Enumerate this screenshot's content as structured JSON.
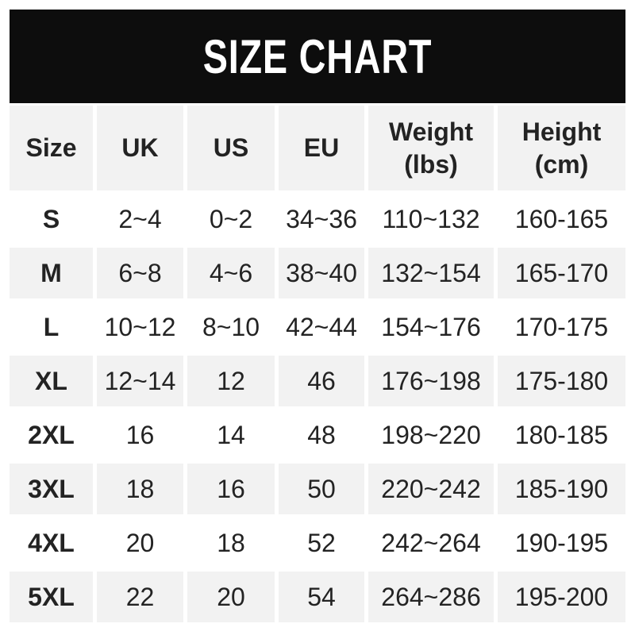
{
  "page": {
    "background": "#ffffff"
  },
  "banner": {
    "title": "SIZE CHART",
    "bg_color": "#0d0d0d",
    "text_color": "#ffffff"
  },
  "chart_data": {
    "type": "table",
    "title": "SIZE CHART",
    "columns": [
      "Size",
      "UK",
      "US",
      "EU",
      "Weight\n(lbs)",
      "Height\n(cm)"
    ],
    "rows": [
      [
        "S",
        "2~4",
        "0~2",
        "34~36",
        "110~132",
        "160-165"
      ],
      [
        "M",
        "6~8",
        "4~6",
        "38~40",
        "132~154",
        "165-170"
      ],
      [
        "L",
        "10~12",
        "8~10",
        "42~44",
        "154~176",
        "170-175"
      ],
      [
        "XL",
        "12~14",
        "12",
        "46",
        "176~198",
        "175-180"
      ],
      [
        "2XL",
        "16",
        "14",
        "48",
        "198~220",
        "180-185"
      ],
      [
        "3XL",
        "18",
        "16",
        "50",
        "220~242",
        "185-190"
      ],
      [
        "4XL",
        "20",
        "18",
        "52",
        "242~264",
        "190-195"
      ],
      [
        "5XL",
        "22",
        "20",
        "54",
        "264~286",
        "195-200"
      ]
    ],
    "layout": {
      "stripe_color": "#f2f2f2",
      "row_bg_pattern": "header gray, then data rows alternate white/gray starting white",
      "text_color": "#232323",
      "grid": "no visible borders, white gutters between cells"
    }
  }
}
